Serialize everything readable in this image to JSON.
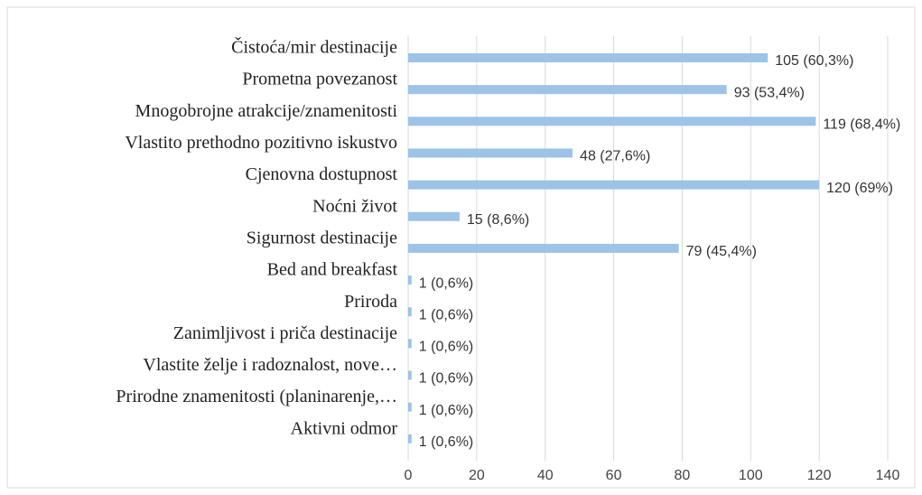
{
  "chart_data": {
    "type": "barh",
    "categories": [
      "Čistoća/mir destinacije",
      "Prometna povezanost",
      "Mnogobrojne atrakcije/znamenitosti",
      "Vlastito prethodno pozitivno iskustvo",
      "Cjenovna dostupnost",
      "Noćni život",
      "Sigurnost destinacije",
      "Bed and breakfast",
      "Priroda",
      "Zanimljivost i priča destinacije",
      "Vlastite želje i radoznalost, nove…",
      "Prirodne znamenitosti (planinarenje,…",
      "Aktivni odmor"
    ],
    "values": [
      105,
      93,
      119,
      48,
      120,
      15,
      79,
      1,
      1,
      1,
      1,
      1,
      1
    ],
    "value_labels": [
      "105 (60,3%)",
      "93 (53,4%)",
      "119 (68,4%)",
      "48 (27,6%)",
      "120 (69%)",
      "15 (8,6%)",
      "79 (45,4%)",
      "1 (0,6%)",
      "1 (0,6%)",
      "1 (0,6%)",
      "1 (0,6%)",
      "1 (0,6%)",
      "1 (0,6%)"
    ],
    "color": "#9dc3e6",
    "xlim": [
      0,
      140
    ],
    "xticks": [
      0,
      20,
      40,
      60,
      80,
      100,
      120,
      140
    ],
    "grid": true
  }
}
